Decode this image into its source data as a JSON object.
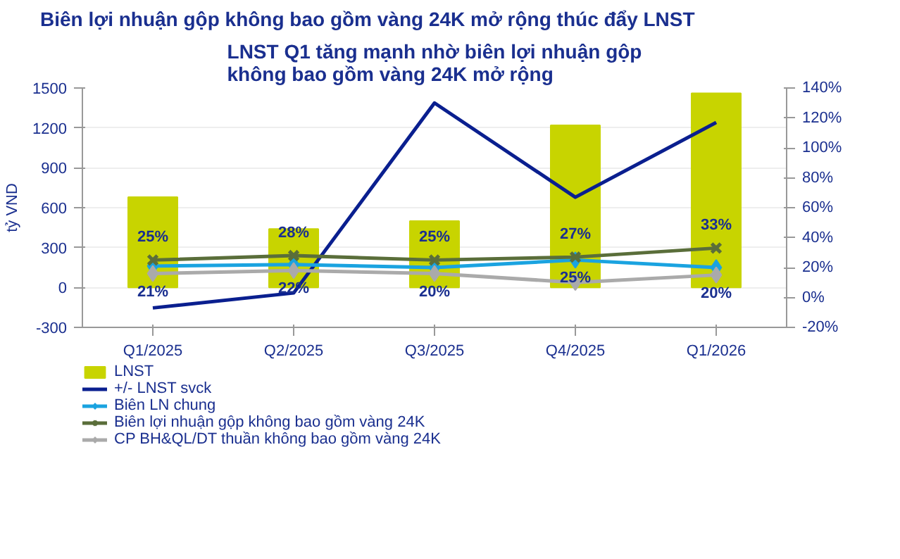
{
  "chart_data": {
    "type": "bar",
    "title": "Biên lợi nhuận gộp không bao gồm vàng 24K mở rộng thúc đẩy LNST",
    "subtitle": "LNST Q1 tăng mạnh nhờ biên lợi nhuận gộp không bao gồm vàng 24K mở rộng",
    "ylabel": "tỷ VND",
    "categories": [
      "Q1/2025",
      "Q2/2025",
      "Q3/2025",
      "Q4/2025",
      "Q1/2026"
    ],
    "series": [
      {
        "name": "LNST",
        "color": "#c8d400",
        "values": [
          680,
          440,
          500,
          1220,
          1460
        ]
      },
      {
        "name": "+/- LNST svck",
        "type": "line",
        "axis": "y2",
        "color": "#0a1f8f",
        "marker": "none",
        "values": [
          -7,
          3,
          130,
          67,
          117
        ]
      },
      {
        "name": "Biên LN chung",
        "type": "line",
        "axis": "y2",
        "color": "#1aa3e0",
        "marker": "diamond",
        "values": [
          21,
          22,
          20,
          25,
          20
        ],
        "value_labels": [
          "21%",
          "22%",
          "20%",
          "25%",
          "20%"
        ]
      },
      {
        "name": "Biên lợi nhuận gộp không bao gồm vàng 24K",
        "type": "line",
        "axis": "y2",
        "color": "#5a6e3a",
        "marker": "cross",
        "values": [
          25,
          28,
          25,
          27,
          33
        ],
        "value_labels": [
          "25%",
          "28%",
          "25%",
          "27%",
          "33%"
        ]
      },
      {
        "name": "CP BH&QL/DT thuần không bao gồm vàng 24K",
        "type": "line",
        "axis": "y2",
        "color": "#aaaaaa",
        "marker": "diamond",
        "values": [
          16,
          18,
          16,
          10,
          15
        ]
      }
    ],
    "ylim": [
      -300,
      1500
    ],
    "yticks": [
      -300,
      0,
      300,
      600,
      900,
      1200,
      1500
    ],
    "y2lim": [
      -20,
      140
    ],
    "y2ticks": [
      {
        "value": -20,
        "label": "-20%"
      },
      {
        "value": 0,
        "label": "0%"
      },
      {
        "value": 20,
        "label": "20%"
      },
      {
        "value": 40,
        "label": "40%"
      },
      {
        "value": 60,
        "label": "60%"
      },
      {
        "value": 80,
        "label": "80%"
      },
      {
        "value": 100,
        "label": "100%"
      },
      {
        "value": 120,
        "label": "120%"
      },
      {
        "value": 140,
        "label": "140%"
      }
    ],
    "grid": "y",
    "legend": "bottom"
  }
}
